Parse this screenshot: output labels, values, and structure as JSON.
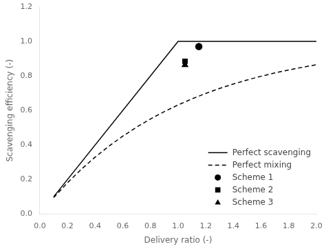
{
  "chart_data": {
    "type": "line",
    "x_label": "Delivery ratio (-)",
    "y_label": "Scavenging efficiency (-)",
    "series": [
      {
        "name": "Perfect scavenging",
        "type": "line",
        "color": "#000000",
        "line_style": "solid",
        "x": [
          0.1,
          1.0,
          2.0
        ],
        "values": [
          0.1,
          1.0,
          1.0
        ]
      },
      {
        "name": "Perfect mixing",
        "type": "line",
        "color": "#000000",
        "line_style": "dashed",
        "x": [
          0.1,
          0.2,
          0.3,
          0.4,
          0.5,
          0.6,
          0.7,
          0.8,
          0.9,
          1.0,
          1.1,
          1.2,
          1.3,
          1.4,
          1.5,
          1.6,
          1.7,
          1.8,
          1.9,
          2.0
        ],
        "values": [
          0.0952,
          0.1813,
          0.2592,
          0.3297,
          0.3935,
          0.4512,
          0.5034,
          0.5507,
          0.5934,
          0.6321,
          0.6671,
          0.6988,
          0.7275,
          0.7534,
          0.7769,
          0.7981,
          0.8173,
          0.8347,
          0.8504,
          0.8647
        ]
      },
      {
        "name": "Scheme 1",
        "type": "scatter",
        "color": "#000000",
        "marker": "circle",
        "x": [
          1.15
        ],
        "values": [
          0.97
        ]
      },
      {
        "name": "Scheme 2",
        "type": "scatter",
        "color": "#000000",
        "marker": "square",
        "x": [
          1.05
        ],
        "values": [
          0.885
        ]
      },
      {
        "name": "Scheme 3",
        "type": "scatter",
        "color": "#000000",
        "marker": "triangle",
        "x": [
          1.05
        ],
        "values": [
          0.863
        ]
      }
    ],
    "xlim": [
      0.0,
      2.0
    ],
    "ylim": [
      0.0,
      1.2
    ],
    "xticks": [
      {
        "value": 0,
        "label": "0.0"
      },
      0.2,
      0.4,
      0.6,
      0.8,
      {
        "value": 1,
        "label": "1.0"
      },
      1.2,
      1.4,
      1.6,
      1.8,
      {
        "value": 2,
        "label": "2.0"
      }
    ],
    "yticks": [
      {
        "value": 0,
        "label": "0.0"
      },
      0.2,
      0.4,
      0.6,
      0.8,
      {
        "value": 1,
        "label": "1.0"
      },
      1.2
    ],
    "grid": false,
    "legend": "lower right"
  }
}
